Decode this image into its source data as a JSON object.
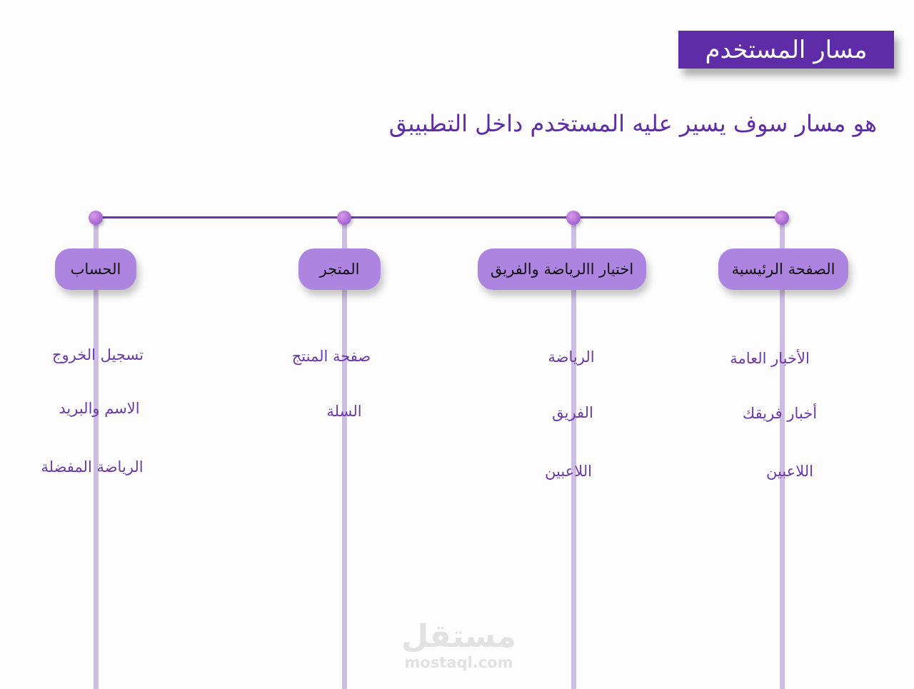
{
  "title": "مسار المستخدم",
  "subtitle": "هو مسار سوف يسير عليه المستخدم داخل التطبيبق",
  "columns": [
    {
      "label": "الصفحة الرئيسية",
      "items": [
        "الأخبار العامة",
        "أخبار فريقك",
        "اللاعبين"
      ]
    },
    {
      "label": "اختيار االرياضة والفريق",
      "items": [
        "الرياضة",
        "الفريق",
        "اللاعبين"
      ]
    },
    {
      "label": "المتجر",
      "items": [
        "صفحة المنتج",
        "السلة"
      ]
    },
    {
      "label": "الحساب",
      "items": [
        "تسجيل الخروج",
        "الاسم والبريد",
        "الرياضة المفضلة"
      ]
    }
  ],
  "watermark": {
    "arabic": "مستقل",
    "latin": "mostaql.com"
  },
  "colors": {
    "title_bg": "#5f2ca8",
    "pill": "#ad85e0",
    "text": "#6a3aa6",
    "line": "#cdbde3"
  }
}
